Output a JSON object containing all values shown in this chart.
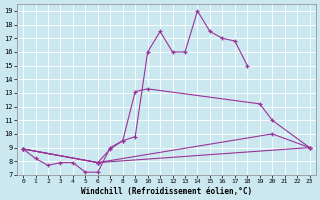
{
  "xlabel": "Windchill (Refroidissement éolien,°C)",
  "bg_color": "#cbe8f0",
  "line_color": "#993399",
  "marker": "+",
  "xlim": [
    -0.5,
    23.5
  ],
  "ylim": [
    7,
    19.5
  ],
  "yticks": [
    7,
    8,
    9,
    10,
    11,
    12,
    13,
    14,
    15,
    16,
    17,
    18,
    19
  ],
  "xticks": [
    0,
    1,
    2,
    3,
    4,
    5,
    6,
    7,
    8,
    9,
    10,
    11,
    12,
    13,
    14,
    15,
    16,
    17,
    18,
    19,
    20,
    21,
    22,
    23
  ],
  "series": [
    {
      "x": [
        0,
        1,
        2,
        3,
        4,
        5,
        6,
        7,
        8,
        9,
        10,
        11,
        12,
        13,
        14,
        15,
        16,
        17,
        18
      ],
      "y": [
        8.9,
        8.2,
        7.7,
        7.9,
        7.9,
        7.2,
        7.2,
        9.0,
        9.5,
        9.8,
        16.0,
        17.5,
        16.0,
        16.0,
        19.0,
        17.5,
        17.0,
        16.8,
        15.0
      ]
    },
    {
      "x": [
        0,
        6,
        7,
        8,
        9,
        10,
        19,
        20,
        23
      ],
      "y": [
        8.9,
        7.9,
        8.9,
        9.5,
        13.1,
        13.3,
        12.2,
        11.0,
        9.0
      ]
    },
    {
      "x": [
        0,
        6,
        20,
        23
      ],
      "y": [
        8.9,
        7.9,
        10.0,
        9.0
      ]
    },
    {
      "x": [
        0,
        6,
        23
      ],
      "y": [
        8.9,
        7.9,
        9.0
      ]
    }
  ]
}
